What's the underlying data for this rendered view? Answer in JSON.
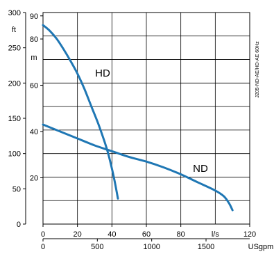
{
  "chart_data": {
    "type": "line",
    "x_axes": {
      "primary": {
        "unit": "l/s",
        "ticks": [
          0,
          20,
          40,
          60,
          80,
          120
        ],
        "range": [
          0,
          120
        ]
      },
      "secondary": {
        "unit": "USgpm",
        "ticks": [
          0,
          500,
          1000,
          1500
        ],
        "range": [
          0,
          1902
        ]
      }
    },
    "y_axes": {
      "feet": {
        "unit": "ft",
        "ticks": [
          0,
          50,
          100,
          150,
          200,
          250,
          300
        ],
        "range": [
          0,
          300
        ]
      },
      "meters": {
        "unit": "m",
        "ticks": [
          20,
          40,
          60,
          80,
          90
        ],
        "range": [
          0,
          91.44
        ]
      }
    },
    "grid": true,
    "annotation": "J205-ND-AE/HD-AE 60Hz",
    "series": [
      {
        "name": "HD",
        "color": "#1f77b4",
        "points": [
          [
            0,
            86
          ],
          [
            4,
            83.5
          ],
          [
            8,
            80
          ],
          [
            12,
            75.5
          ],
          [
            16,
            70.5
          ],
          [
            20,
            65
          ],
          [
            24,
            58.5
          ],
          [
            28,
            51
          ],
          [
            32,
            43.5
          ],
          [
            36,
            35
          ],
          [
            38,
            30
          ],
          [
            40,
            24
          ],
          [
            42,
            17
          ],
          [
            43.5,
            11
          ]
        ]
      },
      {
        "name": "ND",
        "color": "#1f77b4",
        "points": [
          [
            0,
            43
          ],
          [
            10,
            40
          ],
          [
            20,
            37
          ],
          [
            30,
            34
          ],
          [
            40,
            31.5
          ],
          [
            50,
            29
          ],
          [
            60,
            27
          ],
          [
            70,
            24.5
          ],
          [
            80,
            21.5
          ],
          [
            90,
            18
          ],
          [
            100,
            14.5
          ],
          [
            105,
            12
          ],
          [
            108,
            9
          ],
          [
            110,
            6
          ]
        ]
      }
    ]
  }
}
